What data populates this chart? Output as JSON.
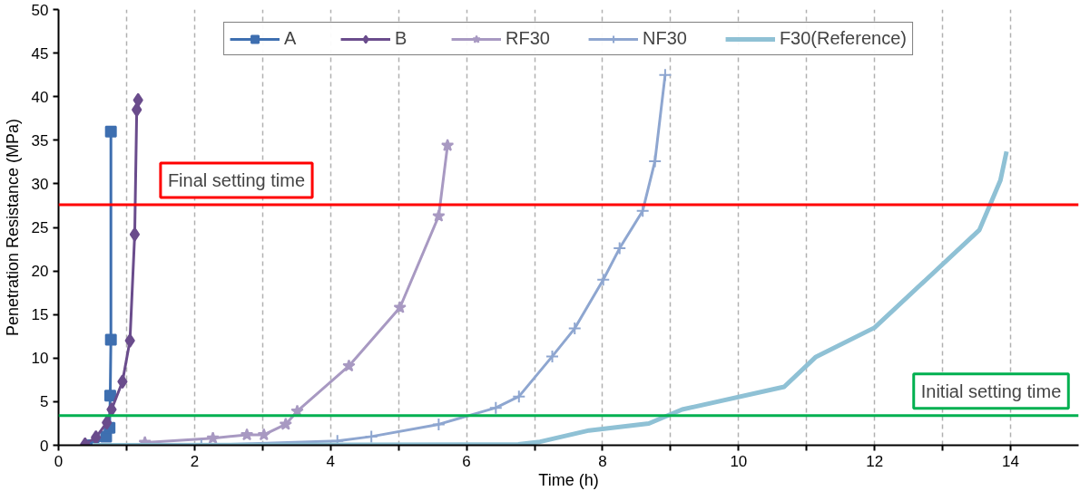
{
  "chart_data": {
    "type": "line",
    "xlabel": "Time (h)",
    "ylabel": "Penetration Resistance (MPa)",
    "xlim": [
      0,
      15
    ],
    "ylim": [
      0,
      50
    ],
    "xticks": [
      0,
      {
        "value": 1,
        "label": null
      },
      2,
      {
        "value": 3,
        "label": null
      },
      4,
      {
        "value": 5,
        "label": null
      },
      6,
      {
        "value": 7,
        "label": null
      },
      8,
      {
        "value": 9,
        "label": null
      },
      10,
      {
        "value": 11,
        "label": null
      },
      12,
      {
        "value": 13,
        "label": null
      },
      14
    ],
    "yticks": [
      0,
      5,
      10,
      15,
      20,
      25,
      30,
      35,
      40,
      45,
      50
    ],
    "grid": "x",
    "legend": "top",
    "series": [
      {
        "name": "A",
        "color": "#3e6fb0",
        "marker": "square",
        "x": [
          0.5,
          0.7,
          0.75,
          0.76,
          0.77,
          0.77
        ],
        "values": [
          0,
          1.0,
          2.0,
          5.7,
          12.1,
          36
        ]
      },
      {
        "name": "B",
        "color": "#6a4c8c",
        "marker": "diamond",
        "x": [
          0.39,
          0.55,
          0.71,
          0.78,
          0.94,
          1.05,
          1.12,
          1.15,
          1.17
        ],
        "values": [
          0.1,
          0.9,
          2.6,
          4.1,
          7.3,
          12.0,
          24.2,
          38.5,
          39.6
        ]
      },
      {
        "name": "RF30",
        "color": "#a899c2",
        "marker": "star",
        "x": [
          1.27,
          2.27,
          2.77,
          3.02,
          3.34,
          3.51,
          4.27,
          5.02,
          5.59,
          5.72
        ],
        "values": [
          0.3,
          0.8,
          1.2,
          1.2,
          2.4,
          3.9,
          9.1,
          15.8,
          26.3,
          34.4
        ]
      },
      {
        "name": "NF30",
        "color": "#8ea6d0",
        "marker": "cross",
        "x": [
          2.1,
          4.1,
          4.6,
          5.59,
          6.43,
          6.77,
          7.26,
          7.59,
          8.01,
          8.25,
          8.59,
          8.77,
          8.92
        ],
        "values": [
          0,
          0.5,
          1.0,
          2.4,
          4.3,
          5.6,
          10.2,
          13.4,
          19.0,
          22.6,
          26.9,
          32.6,
          42.5
        ]
      },
      {
        "name": "F30(Reference)",
        "color": "#8fc1d5",
        "marker": "none",
        "x": [
          0.5,
          6.76,
          7.08,
          7.8,
          8.68,
          9.17,
          10.67,
          11.13,
          12.0,
          13.54,
          13.85,
          13.94
        ],
        "values": [
          0,
          0.1,
          0.4,
          1.7,
          2.5,
          4.1,
          6.7,
          10.1,
          13.5,
          24.7,
          30.4,
          33.7
        ]
      }
    ],
    "ref_lines": [
      {
        "axis": "y",
        "value": 27.6,
        "label": "Final setting time",
        "color": "#ff0000"
      },
      {
        "axis": "y",
        "value": 3.4,
        "label": "Initial setting time",
        "color": "#00b050"
      }
    ]
  }
}
